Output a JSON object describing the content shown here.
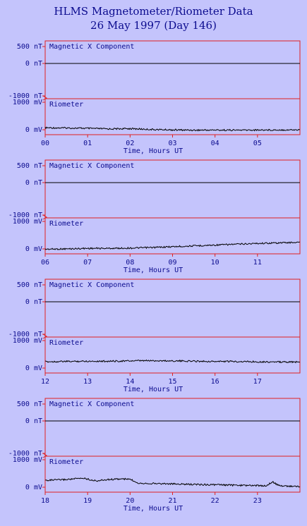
{
  "header": {
    "title": "HLMS Magnetometer/Riometer Data",
    "subtitle": "26 May 1997 (Day 146)"
  },
  "colors": {
    "background": "#c4c4fc",
    "frame": "#e02020",
    "text": "#0b0b8e",
    "trace": "#000000"
  },
  "chart_data": [
    {
      "type": "line",
      "panel_label": "Magnetic X Component",
      "y_ticks": [
        "500 nT",
        "0 nT",
        "-1000 nT"
      ],
      "riometer_label": "Riometer",
      "riometer_y_ticks": [
        "1000 mV",
        "0 mV"
      ],
      "xlabel": "Time, Hours UT",
      "x_ticks": [
        "00",
        "01",
        "02",
        "03",
        "04",
        "05"
      ],
      "xlim": [
        0,
        6
      ],
      "mag_series": {
        "x": [
          0,
          6
        ],
        "y": [
          0,
          0
        ]
      },
      "riometer_series": {
        "x": [
          0,
          0.5,
          1,
          1.5,
          2,
          2.5,
          3,
          3.5,
          4,
          4.5,
          5,
          5.5,
          6
        ],
        "y": [
          70,
          65,
          50,
          30,
          40,
          10,
          -5,
          -15,
          -10,
          -15,
          -10,
          -5,
          -5
        ]
      }
    },
    {
      "type": "line",
      "panel_label": "Magnetic X Component",
      "y_ticks": [
        "500 nT",
        "0 nT",
        "-1000 nT"
      ],
      "riometer_label": "Riometer",
      "riometer_y_ticks": [
        "1000 mV",
        "0 mV"
      ],
      "xlabel": "Time, Hours UT",
      "x_ticks": [
        "06",
        "07",
        "08",
        "09",
        "10",
        "11"
      ],
      "xlim": [
        6,
        12
      ],
      "mag_series": {
        "x": [
          6,
          12
        ],
        "y": [
          0,
          0
        ]
      },
      "riometer_series": {
        "x": [
          6,
          6.5,
          7,
          7.5,
          8,
          8.5,
          9,
          9.5,
          10,
          10.5,
          11,
          11.5,
          12
        ],
        "y": [
          -10,
          0,
          20,
          20,
          30,
          50,
          80,
          110,
          140,
          170,
          200,
          220,
          240
        ]
      }
    },
    {
      "type": "line",
      "panel_label": "Magnetic X Component",
      "y_ticks": [
        "500 nT",
        "0 nT",
        "-1000 nT"
      ],
      "riometer_label": "Riometer",
      "riometer_y_ticks": [
        "1000 mV",
        "0 mV"
      ],
      "xlabel": "Time, Hours UT",
      "x_ticks": [
        "12",
        "13",
        "14",
        "15",
        "16",
        "17"
      ],
      "xlim": [
        12,
        18
      ],
      "mag_series": {
        "x": [
          12,
          18
        ],
        "y": [
          0,
          0
        ]
      },
      "riometer_series": {
        "x": [
          12,
          12.5,
          13,
          13.5,
          14,
          14.5,
          15,
          15.5,
          16,
          16.5,
          17,
          17.5,
          18
        ],
        "y": [
          230,
          240,
          250,
          250,
          260,
          270,
          260,
          250,
          240,
          240,
          230,
          220,
          220
        ]
      }
    },
    {
      "type": "line",
      "panel_label": "Magnetic X Component",
      "y_ticks": [
        "500 nT",
        "0 nT",
        "-1000 nT"
      ],
      "riometer_label": "Riometer",
      "riometer_y_ticks": [
        "1000 mV",
        "0 mV"
      ],
      "xlabel": "Time, Hours UT",
      "x_ticks": [
        "18",
        "19",
        "20",
        "21",
        "22",
        "23"
      ],
      "xlim": [
        18,
        24
      ],
      "mag_series": {
        "x": [
          18,
          24
        ],
        "y": [
          0,
          0
        ]
      },
      "riometer_series": {
        "x": [
          18,
          18.5,
          18.9,
          19.2,
          19.5,
          19.8,
          20,
          20.2,
          21,
          21.5,
          22,
          22.5,
          23,
          23.2,
          23.35,
          23.5,
          23.7,
          24
        ],
        "y": [
          250,
          280,
          330,
          230,
          280,
          300,
          290,
          150,
          120,
          100,
          90,
          70,
          60,
          50,
          200,
          60,
          40,
          30
        ]
      }
    }
  ]
}
